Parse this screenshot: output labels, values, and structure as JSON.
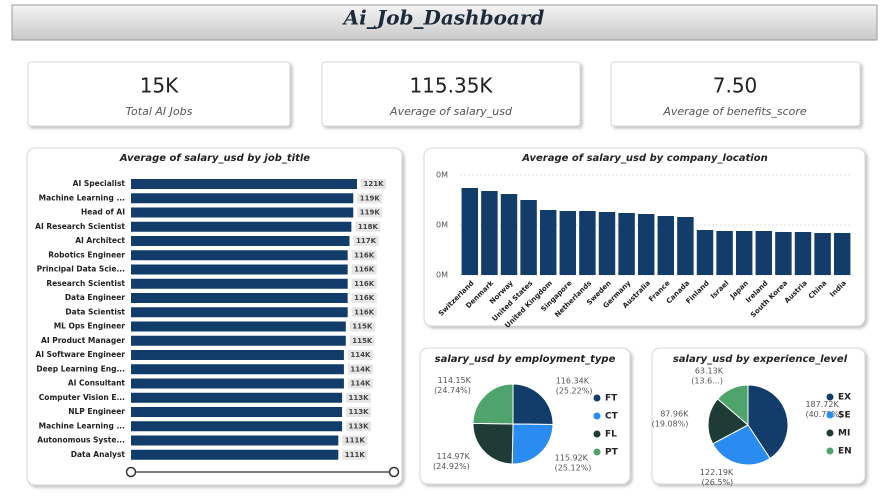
{
  "header": {
    "title": "Ai_Job_Dashboard"
  },
  "kpis": [
    {
      "value": "15K",
      "label": "Total AI Jobs"
    },
    {
      "value": "115.35K",
      "label": "Average of salary_usd"
    },
    {
      "value": "7.50",
      "label": "Average of benefits_score"
    }
  ],
  "chart_data": [
    {
      "type": "hbar",
      "title": "Average of salary_usd by job_title",
      "color": "#123d6b",
      "categories": [
        "AI Specialist",
        "Machine Learning ...",
        "Head of AI",
        "AI Research Scientist",
        "AI Architect",
        "Robotics Engineer",
        "Principal Data Scie...",
        "Research Scientist",
        "Data Engineer",
        "Data Scientist",
        "ML Ops Engineer",
        "AI Product Manager",
        "AI Software Engineer",
        "Deep Learning Eng...",
        "AI Consultant",
        "Computer Vision E...",
        "NLP Engineer",
        "Machine Learning ...",
        "Autonomous Syste...",
        "Data Analyst"
      ],
      "values": [
        121000,
        119000,
        119000,
        118000,
        117000,
        116000,
        116000,
        116000,
        116000,
        116000,
        115000,
        115000,
        114000,
        114000,
        114000,
        113000,
        113000,
        113000,
        111000,
        111000
      ],
      "value_labels": [
        "121K",
        "119K",
        "119K",
        "118K",
        "117K",
        "116K",
        "116K",
        "116K",
        "116K",
        "116K",
        "115K",
        "115K",
        "114K",
        "114K",
        "114K",
        "113K",
        "113K",
        "113K",
        "111K",
        "111K"
      ]
    },
    {
      "type": "bar",
      "title": "Average of salary_usd by company_location",
      "color": "#123d6b",
      "categories": [
        "Switzerland",
        "Denmark",
        "Norway",
        "United States",
        "United Kingdom",
        "Singapore",
        "Netherlands",
        "Sweden",
        "Germany",
        "Australia",
        "France",
        "Canada",
        "Finland",
        "Israel",
        "Japan",
        "Ireland",
        "South Korea",
        "Austria",
        "China",
        "India"
      ],
      "values": [
        174000,
        168000,
        162000,
        150000,
        130000,
        128000,
        128000,
        126000,
        124000,
        122000,
        118000,
        116000,
        90000,
        88000,
        88000,
        88000,
        86000,
        86000,
        84000,
        84000
      ],
      "ylim": [
        0,
        200000
      ],
      "yticks": [
        {
          "value": 0,
          "label": "0M"
        },
        {
          "value": 100000,
          "label": "0M"
        },
        {
          "value": 200000,
          "label": "0M"
        }
      ],
      "grid": true
    },
    {
      "type": "pie",
      "title": "salary_usd by employment_type",
      "categories": [
        "FT",
        "CT",
        "FL",
        "PT"
      ],
      "colors": [
        "#123d6b",
        "#2a8cf0",
        "#1f3b36",
        "#4ea46a"
      ],
      "values": [
        116340,
        115920,
        114970,
        114150
      ],
      "value_labels": [
        "116.34K",
        "115.92K",
        "114.97K",
        "114.15K"
      ],
      "percents": [
        25.22,
        25.12,
        24.92,
        24.74
      ],
      "percent_labels": [
        "(25.22%)",
        "(25.12%)",
        "(24.92%)",
        "(24.74%)"
      ]
    },
    {
      "type": "pie",
      "title": "salary_usd by experience_level",
      "categories": [
        "EX",
        "SE",
        "MI",
        "EN"
      ],
      "colors": [
        "#123d6b",
        "#2a8cf0",
        "#1f3b36",
        "#4ea46a"
      ],
      "values": [
        187720,
        122190,
        87960,
        63130
      ],
      "value_labels": [
        "187.72K",
        "122.19K",
        "87.96K",
        "63.13K"
      ],
      "percents": [
        40.72,
        26.5,
        19.08,
        13.6
      ],
      "percent_labels": [
        "(40.72%)",
        "(26.5%)",
        "(19.08%)",
        "(13.6...)"
      ]
    }
  ]
}
